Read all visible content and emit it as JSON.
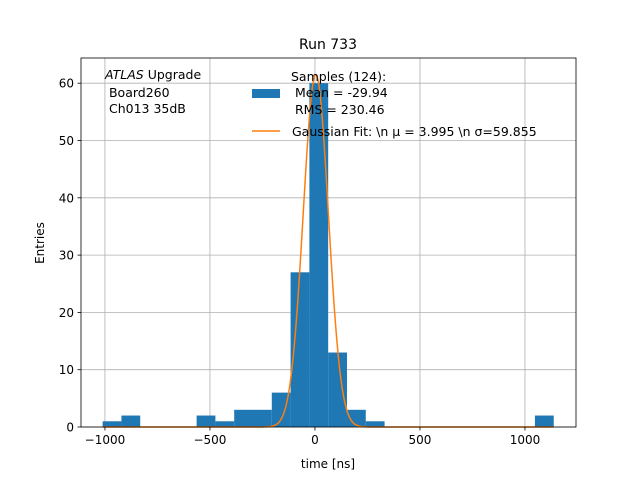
{
  "chart_data": {
    "type": "bar",
    "title": "Run 733",
    "xlabel": "time [ns]",
    "ylabel": "Entries",
    "xlim": [
      -1114,
      1243
    ],
    "ylim": [
      0,
      64.4
    ],
    "grid": true,
    "legend_placement": "top-right",
    "x_ticks": [
      -1000,
      -500,
      0,
      500,
      1000
    ],
    "y_ticks": [
      0,
      10,
      20,
      30,
      40,
      50,
      60
    ],
    "histogram": {
      "bin_start": -1011,
      "bin_width": 89.5,
      "counts": [
        1,
        2,
        0,
        0,
        0,
        2,
        1,
        3,
        3,
        6,
        27,
        60,
        13,
        3,
        1,
        0,
        0,
        0,
        0,
        0,
        0,
        0,
        0,
        2
      ],
      "color": "#1f77b4"
    },
    "fit": {
      "amplitude": 61.5,
      "mu": 3.995,
      "sigma": 59.855,
      "color": "#ff7f0e"
    },
    "legend": {
      "hist_lines": [
        "Samples (124):",
        " Mean = -29.94",
        " RMS = 230.46"
      ],
      "fit_label": "Gaussian Fit: \\n μ = 3.995 \\n σ=59.855"
    },
    "annotation": {
      "atlas": "ATLAS",
      "upgrade": " Upgrade",
      "board": " Board260",
      "channel": " Ch013 35dB"
    }
  }
}
